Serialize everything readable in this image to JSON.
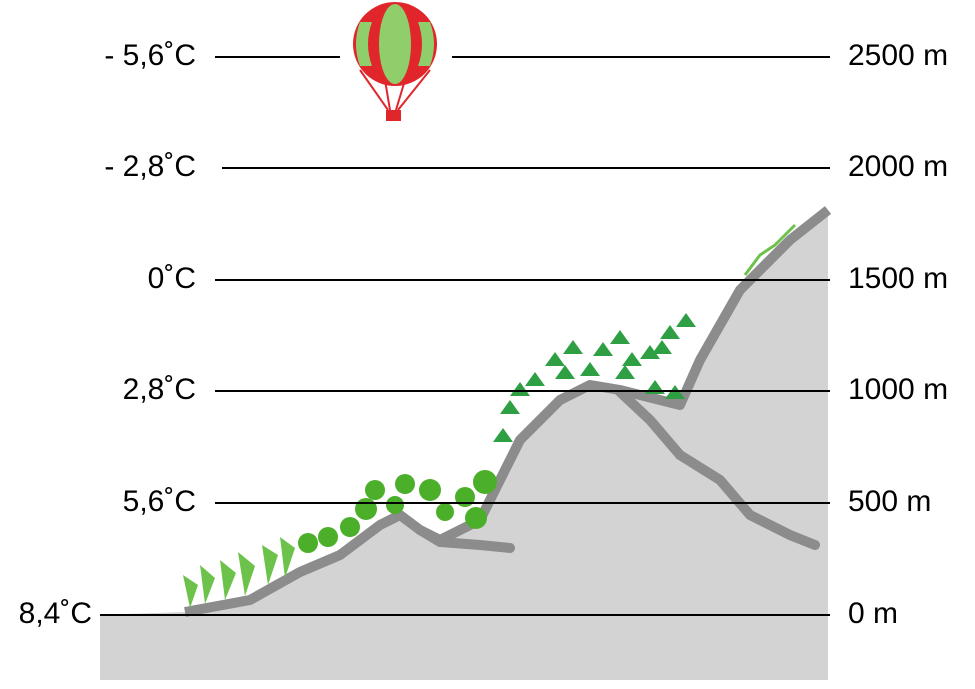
{
  "levels": [
    {
      "temperature": "- 5,6˚C",
      "altitude": "2500 m"
    },
    {
      "temperature": "- 2,8˚C",
      "altitude": "2000 m"
    },
    {
      "temperature": "0˚C",
      "altitude": "1500 m"
    },
    {
      "temperature": "2,8˚C",
      "altitude": "1000 m"
    },
    {
      "temperature": "5,6˚C",
      "altitude": "500 m"
    },
    {
      "temperature": "8,4˚C",
      "altitude": "0 m"
    }
  ]
}
